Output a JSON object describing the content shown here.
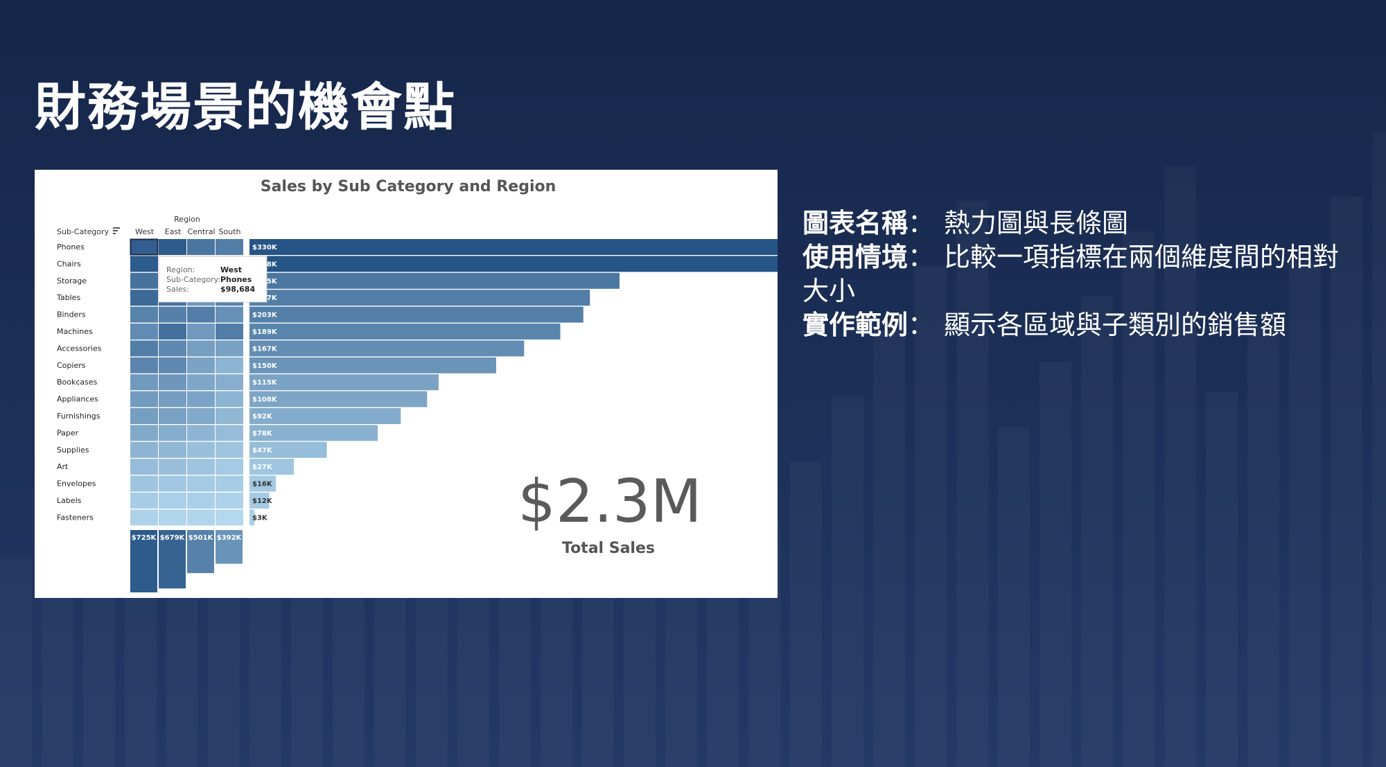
{
  "slide": {
    "title": "財務場景的機會點",
    "info": [
      {
        "label": "圖表名稱",
        "colon": "：",
        "value": "熱力圖與長條圖"
      },
      {
        "label": "使用情境",
        "colon": "：",
        "value": "比較一項指標在兩個維度間的相對大小"
      },
      {
        "label": "實作範例",
        "colon": "：",
        "value": "顯示各區域與子類別的銷售額"
      }
    ]
  },
  "colors": {
    "background": "#1c3058",
    "panel": "#ffffff",
    "bar_dark": "#2a5a8e",
    "bar_light": "#a9d2ee",
    "text_gray": "#555555"
  },
  "chart_data": {
    "type": "heatmap",
    "title": "Sales by Sub Category and Region",
    "column_header": "Region",
    "row_header": "Sub-Category",
    "sort_icon": "sort-icon",
    "regions": [
      "West",
      "East",
      "Central",
      "South"
    ],
    "categories": [
      "Phones",
      "Chairs",
      "Storage",
      "Tables",
      "Binders",
      "Machines",
      "Accessories",
      "Copiers",
      "Bookcases",
      "Appliances",
      "Furnishings",
      "Paper",
      "Supplies",
      "Art",
      "Envelopes",
      "Labels",
      "Fasteners"
    ],
    "heat_levels": [
      [
        0.92,
        0.95,
        0.76,
        0.7
      ],
      [
        0.95,
        0.85,
        0.78,
        0.62
      ],
      [
        0.78,
        0.72,
        0.6,
        0.5
      ],
      [
        0.85,
        0.8,
        0.52,
        0.66
      ],
      [
        0.66,
        0.68,
        0.7,
        0.56
      ],
      [
        0.6,
        0.8,
        0.5,
        0.7
      ],
      [
        0.7,
        0.62,
        0.46,
        0.44
      ],
      [
        0.64,
        0.62,
        0.42,
        0.3
      ],
      [
        0.5,
        0.52,
        0.4,
        0.34
      ],
      [
        0.48,
        0.46,
        0.42,
        0.3
      ],
      [
        0.46,
        0.44,
        0.38,
        0.28
      ],
      [
        0.38,
        0.36,
        0.3,
        0.24
      ],
      [
        0.3,
        0.28,
        0.22,
        0.18
      ],
      [
        0.24,
        0.22,
        0.18,
        0.14
      ],
      [
        0.18,
        0.16,
        0.14,
        0.12
      ],
      [
        0.12,
        0.1,
        0.1,
        0.08
      ],
      [
        0.08,
        0.06,
        0.06,
        0.04
      ]
    ],
    "bar_values": [
      330,
      328,
      225,
      207,
      203,
      189,
      167,
      150,
      115,
      108,
      92,
      78,
      47,
      27,
      16,
      12,
      3
    ],
    "bar_labels": [
      "$330K",
      "$328K",
      "$225K",
      "$207K",
      "$203K",
      "$189K",
      "$167K",
      "$150K",
      "$115K",
      "$108K",
      "$92K",
      "$78K",
      "$47K",
      "$27K",
      "$16K",
      "$12K",
      "$3K"
    ],
    "bar_xlim": [
      0,
      335
    ],
    "region_totals": [
      725,
      679,
      501,
      392
    ],
    "region_total_labels": [
      "$725K",
      "$679K",
      "$501K",
      "$392K"
    ],
    "kpi_value": "$2.3M",
    "kpi_label": "Total Sales",
    "tooltip": {
      "rows": [
        {
          "key": "Region:",
          "value": "West"
        },
        {
          "key": "Sub-Category:",
          "value": "Phones"
        },
        {
          "key": "Sales:",
          "value": "$98,684"
        }
      ]
    }
  }
}
